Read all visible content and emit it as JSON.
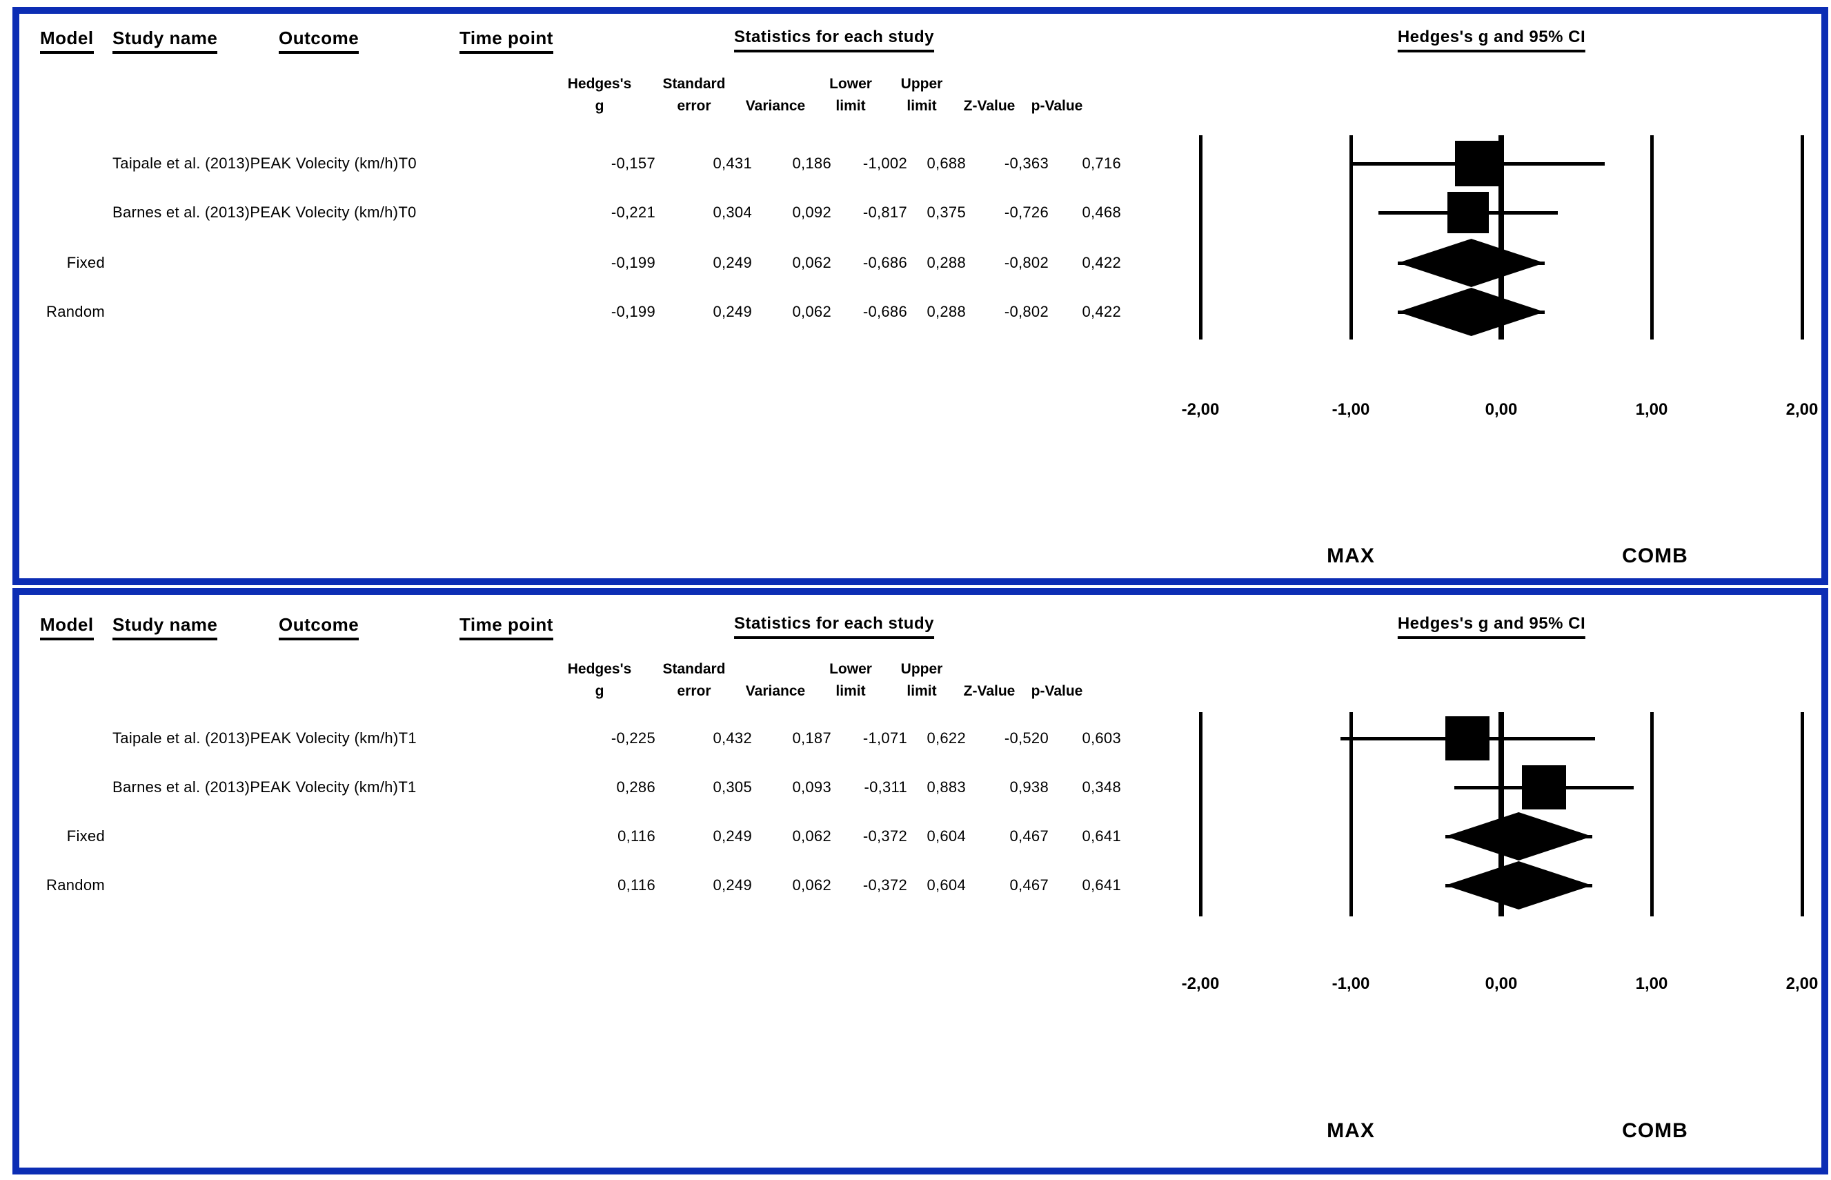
{
  "colors": {
    "border_blue": "#0c2db4",
    "ink": "#000000"
  },
  "chart_data": [
    {
      "type": "forest",
      "panel": "T0",
      "headers": {
        "model": "Model",
        "study": "Study name",
        "outcome": "Outcome",
        "timepoint": "Time point",
        "stats_group": "Statistics for each study",
        "plot_group": "Hedges's g and 95% CI"
      },
      "stat_headers": [
        {
          "line1": "Hedges's",
          "line2": "g"
        },
        {
          "line1": "Standard",
          "line2": "error"
        },
        {
          "line1": "",
          "line2": "Variance"
        },
        {
          "line1": "Lower",
          "line2": "limit"
        },
        {
          "line1": "Upper",
          "line2": "limit"
        },
        {
          "line1": "",
          "line2": "Z-Value"
        },
        {
          "line1": "",
          "line2": "p-Value"
        }
      ],
      "rows": [
        {
          "model": "",
          "study": "Taipale et al. (2013)",
          "outcome": "PEAK Volecity (km/h)",
          "timepoint": "T0",
          "values": [
            "-0,157",
            "0,431",
            "0,186",
            "-1,002",
            "0,688",
            "-0,363",
            "0,716"
          ],
          "g": -0.157,
          "lower": -1.002,
          "upper": 0.688,
          "marker": "square",
          "marker_px": 66
        },
        {
          "model": "",
          "study": "Barnes et al. (2013)",
          "outcome": "PEAK Volecity (km/h)",
          "timepoint": "T0",
          "values": [
            "-0,221",
            "0,304",
            "0,092",
            "-0,817",
            "0,375",
            "-0,726",
            "0,468"
          ],
          "g": -0.221,
          "lower": -0.817,
          "upper": 0.375,
          "marker": "square",
          "marker_px": 60
        },
        {
          "model": "Fixed",
          "study": "",
          "outcome": "",
          "timepoint": "",
          "values": [
            "-0,199",
            "0,249",
            "0,062",
            "-0,686",
            "0,288",
            "-0,802",
            "0,422"
          ],
          "g": -0.199,
          "lower": -0.686,
          "upper": 0.288,
          "marker": "diamond",
          "marker_px": 70
        },
        {
          "model": "Random",
          "study": "",
          "outcome": "",
          "timepoint": "",
          "values": [
            "-0,199",
            "0,249",
            "0,062",
            "-0,686",
            "0,288",
            "-0,802",
            "0,422"
          ],
          "g": -0.199,
          "lower": -0.686,
          "upper": 0.288,
          "marker": "diamond",
          "marker_px": 70
        }
      ],
      "axis": {
        "xlim": [
          -2,
          2
        ],
        "tick_values": [
          -2,
          -1,
          0,
          1,
          2
        ],
        "tick_labels": [
          "-2,00",
          "-1,00",
          "0,00",
          "1,00",
          "2,00"
        ]
      },
      "footer": {
        "left": "MAX",
        "right": "COMB"
      }
    },
    {
      "type": "forest",
      "panel": "T1",
      "headers": {
        "model": "Model",
        "study": "Study name",
        "outcome": "Outcome",
        "timepoint": "Time point",
        "stats_group": "Statistics for each study",
        "plot_group": "Hedges's g and 95% CI"
      },
      "stat_headers": [
        {
          "line1": "Hedges's",
          "line2": "g"
        },
        {
          "line1": "Standard",
          "line2": "error"
        },
        {
          "line1": "",
          "line2": "Variance"
        },
        {
          "line1": "Lower",
          "line2": "limit"
        },
        {
          "line1": "Upper",
          "line2": "limit"
        },
        {
          "line1": "",
          "line2": "Z-Value"
        },
        {
          "line1": "",
          "line2": "p-Value"
        }
      ],
      "rows": [
        {
          "model": "",
          "study": "Taipale et al. (2013)",
          "outcome": "PEAK Volecity (km/h)",
          "timepoint": "T1",
          "values": [
            "-0,225",
            "0,432",
            "0,187",
            "-1,071",
            "0,622",
            "-0,520",
            "0,603"
          ],
          "g": -0.225,
          "lower": -1.071,
          "upper": 0.622,
          "marker": "square",
          "marker_px": 64
        },
        {
          "model": "",
          "study": "Barnes et al. (2013)",
          "outcome": "PEAK Volecity (km/h)",
          "timepoint": "T1",
          "values": [
            "0,286",
            "0,305",
            "0,093",
            "-0,311",
            "0,883",
            "0,938",
            "0,348"
          ],
          "g": 0.286,
          "lower": -0.311,
          "upper": 0.883,
          "marker": "square",
          "marker_px": 64
        },
        {
          "model": "Fixed",
          "study": "",
          "outcome": "",
          "timepoint": "",
          "values": [
            "0,116",
            "0,249",
            "0,062",
            "-0,372",
            "0,604",
            "0,467",
            "0,641"
          ],
          "g": 0.116,
          "lower": -0.372,
          "upper": 0.604,
          "marker": "diamond",
          "marker_px": 70
        },
        {
          "model": "Random",
          "study": "",
          "outcome": "",
          "timepoint": "",
          "values": [
            "0,116",
            "0,249",
            "0,062",
            "-0,372",
            "0,604",
            "0,467",
            "0,641"
          ],
          "g": 0.116,
          "lower": -0.372,
          "upper": 0.604,
          "marker": "diamond",
          "marker_px": 70
        }
      ],
      "axis": {
        "xlim": [
          -2,
          2
        ],
        "tick_values": [
          -2,
          -1,
          0,
          1,
          2
        ],
        "tick_labels": [
          "-2,00",
          "-1,00",
          "0,00",
          "1,00",
          "2,00"
        ]
      },
      "footer": {
        "left": "MAX",
        "right": "COMB"
      }
    }
  ]
}
